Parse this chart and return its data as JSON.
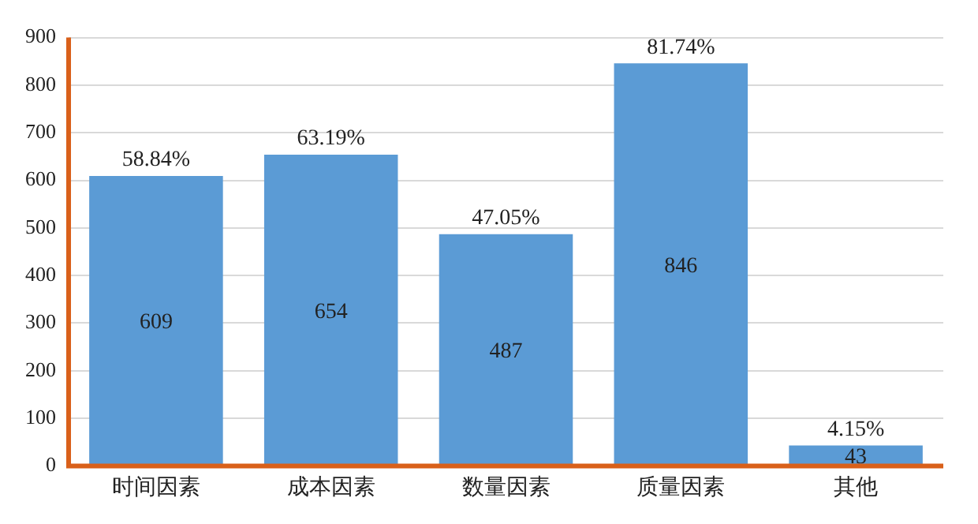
{
  "chart_data": {
    "type": "bar",
    "categories": [
      "时间因素",
      "成本因素",
      "数量因素",
      "质量因素",
      "其他"
    ],
    "series": [
      {
        "color": "#5b9bd5",
        "values": [
          609,
          654,
          487,
          846,
          43
        ]
      }
    ],
    "data_labels": true,
    "ylim": [
      0,
      900
    ],
    "yticks": [
      0,
      100,
      200,
      300,
      400,
      500,
      600,
      700,
      800,
      900
    ],
    "grid": "y",
    "legend": false,
    "annotations": [
      {
        "text": "58.84%",
        "x": "时间因素",
        "y": 609
      },
      {
        "text": "63.19%",
        "x": "成本因素",
        "y": 654
      },
      {
        "text": "47.05%",
        "x": "数量因素",
        "y": 487
      },
      {
        "text": "81.74%",
        "x": "质量因素",
        "y": 846
      },
      {
        "text": "4.15%",
        "x": "其他",
        "y": 43
      }
    ]
  }
}
